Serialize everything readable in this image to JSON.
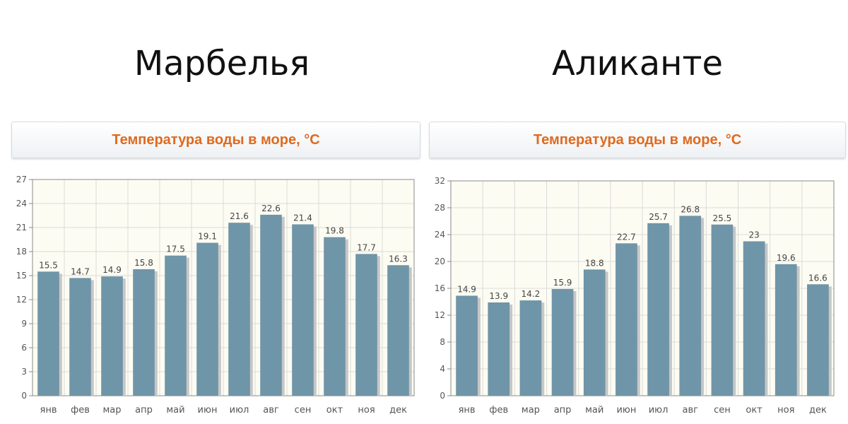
{
  "colors": {
    "bar": "#6f95a8",
    "bar_shadow": "#c7c7c7",
    "plot_bg": "#fdfcf3",
    "grid": "#dadada",
    "axis": "#8a8a8a",
    "header_text": "#e06a1e"
  },
  "chart_data": [
    {
      "type": "bar",
      "city": "Марбелья",
      "header": "Температура воды в море, °C",
      "categories": [
        "янв",
        "фев",
        "мар",
        "апр",
        "май",
        "июн",
        "июл",
        "авг",
        "сен",
        "окт",
        "ноя",
        "дек"
      ],
      "values": [
        15.5,
        14.7,
        14.9,
        15.8,
        17.5,
        19.1,
        21.6,
        22.6,
        21.4,
        19.8,
        17.7,
        16.3
      ],
      "value_labels": [
        "15.5",
        "14.7",
        "14.9",
        "15.8",
        "17.5",
        "19.1",
        "21.6",
        "22.6",
        "21.4",
        "19.8",
        "17.7",
        "16.3"
      ],
      "ylim": [
        0,
        27
      ],
      "yticks": [
        0,
        3,
        6,
        9,
        12,
        15,
        18,
        21,
        24,
        27
      ],
      "grid": true,
      "xlabel": "",
      "ylabel": ""
    },
    {
      "type": "bar",
      "city": "Аликанте",
      "header": "Температура воды в море, °C",
      "categories": [
        "янв",
        "фев",
        "мар",
        "апр",
        "май",
        "июн",
        "июл",
        "авг",
        "сен",
        "окт",
        "ноя",
        "дек"
      ],
      "values": [
        14.9,
        13.9,
        14.2,
        15.9,
        18.8,
        22.7,
        25.7,
        26.8,
        25.5,
        23,
        19.6,
        16.6
      ],
      "value_labels": [
        "14.9",
        "13.9",
        "14.2",
        "15.9",
        "18.8",
        "22.7",
        "25.7",
        "26.8",
        "25.5",
        "23",
        "19.6",
        "16.6"
      ],
      "ylim": [
        0,
        32
      ],
      "yticks": [
        0,
        4,
        8,
        12,
        16,
        20,
        24,
        28,
        32
      ],
      "grid": true,
      "xlabel": "",
      "ylabel": ""
    }
  ]
}
